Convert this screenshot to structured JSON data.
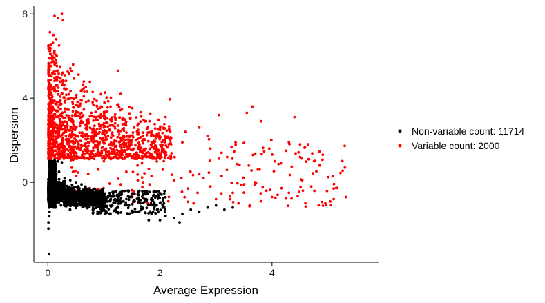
{
  "chart_data": {
    "type": "scatter",
    "title": "",
    "xlabel": "Average Expression",
    "ylabel": "Dispersion",
    "xlim": [
      -0.25,
      5.9
    ],
    "ylim": [
      -3.8,
      8.4
    ],
    "xticks": [
      0,
      2,
      4
    ],
    "yticks": [
      0,
      4,
      8
    ],
    "grid": false,
    "legend_position": "right",
    "series": [
      {
        "name": "Non-variable count: 11714",
        "color": "#000000",
        "count": 11714,
        "points": [
          [
            0.02,
            -3.4
          ],
          [
            0.01,
            -2.2
          ],
          [
            0.01,
            -1.9
          ],
          [
            0.02,
            -1.6
          ],
          [
            0.03,
            -1.4
          ],
          [
            0.02,
            -1.2
          ],
          [
            0.04,
            -1.0
          ],
          [
            0.02,
            0.9
          ],
          [
            0.05,
            1.0
          ],
          [
            0.08,
            1.0
          ],
          [
            0.12,
            1.05
          ],
          [
            0.18,
            1.0
          ],
          [
            0.25,
            0.95
          ],
          [
            0.05,
            0.5
          ],
          [
            0.1,
            0.6
          ],
          [
            0.15,
            0.4
          ],
          [
            0.2,
            0.5
          ],
          [
            0.3,
            0.2
          ],
          [
            0.4,
            0.1
          ],
          [
            0.5,
            0.0
          ],
          [
            0.6,
            -0.1
          ],
          [
            0.05,
            -0.4
          ],
          [
            0.1,
            -0.6
          ],
          [
            0.2,
            -0.7
          ],
          [
            0.3,
            -0.8
          ],
          [
            0.4,
            -0.7
          ],
          [
            0.5,
            -0.8
          ],
          [
            0.6,
            -0.9
          ],
          [
            0.7,
            -0.8
          ],
          [
            0.8,
            -0.6
          ],
          [
            0.9,
            -0.5
          ],
          [
            1.0,
            -0.7
          ],
          [
            1.1,
            -0.9
          ],
          [
            1.2,
            -0.8
          ],
          [
            1.3,
            -0.6
          ],
          [
            1.4,
            -0.8
          ],
          [
            1.5,
            -0.7
          ],
          [
            0.85,
            -1.1
          ],
          [
            0.95,
            -1.0
          ],
          [
            1.05,
            -1.2
          ],
          [
            1.15,
            -1.1
          ],
          [
            1.25,
            -1.2
          ],
          [
            1.35,
            -0.9
          ],
          [
            1.45,
            -1.1
          ],
          [
            1.55,
            -0.9
          ],
          [
            1.65,
            -1.0
          ],
          [
            1.75,
            -0.8
          ],
          [
            1.85,
            -1.5
          ],
          [
            1.95,
            -1.3
          ],
          [
            2.05,
            -1.2
          ],
          [
            2.1,
            -1.6
          ],
          [
            2.25,
            -1.7
          ],
          [
            2.4,
            -1.5
          ],
          [
            2.55,
            -1.3
          ],
          [
            2.7,
            -1.4
          ],
          [
            2.85,
            -1.2
          ],
          [
            3.0,
            -1.1
          ],
          [
            3.15,
            -1.3
          ],
          [
            3.3,
            -1.2
          ],
          [
            2.0,
            -1.8
          ],
          [
            1.8,
            -1.8
          ],
          [
            2.35,
            -1.9
          ]
        ]
      },
      {
        "name": "Variable count: 2000",
        "color": "#ff0000",
        "count": 2000,
        "points": [
          [
            0.12,
            7.9
          ],
          [
            0.18,
            7.8
          ],
          [
            0.25,
            8.0
          ],
          [
            0.27,
            7.7
          ],
          [
            0.1,
            7.0
          ],
          [
            0.15,
            6.8
          ],
          [
            0.2,
            6.5
          ],
          [
            0.08,
            6.0
          ],
          [
            0.14,
            5.8
          ],
          [
            0.22,
            5.5
          ],
          [
            0.18,
            5.0
          ],
          [
            0.28,
            4.8
          ],
          [
            0.32,
            4.4
          ],
          [
            0.06,
            4.6
          ],
          [
            1.25,
            5.3
          ],
          [
            1.3,
            4.2
          ],
          [
            0.65,
            4.3
          ],
          [
            0.42,
            4.0
          ],
          [
            0.55,
            3.6
          ],
          [
            0.8,
            3.8
          ],
          [
            0.95,
            3.6
          ],
          [
            0.72,
            3.0
          ],
          [
            0.6,
            3.3
          ],
          [
            1.0,
            2.8
          ],
          [
            1.1,
            2.5
          ],
          [
            1.2,
            2.8
          ],
          [
            1.35,
            2.2
          ],
          [
            1.5,
            2.0
          ],
          [
            1.6,
            2.7
          ],
          [
            1.75,
            2.9
          ],
          [
            1.95,
            1.6
          ],
          [
            2.1,
            3.1
          ],
          [
            2.18,
            3.95
          ],
          [
            2.4,
            1.9
          ],
          [
            2.45,
            2.4
          ],
          [
            2.7,
            2.6
          ],
          [
            2.85,
            2.2
          ],
          [
            3.05,
            3.2
          ],
          [
            3.2,
            1.2
          ],
          [
            3.35,
            1.9
          ],
          [
            3.55,
            3.3
          ],
          [
            3.65,
            3.6
          ],
          [
            3.8,
            2.9
          ],
          [
            3.95,
            1.6
          ],
          [
            4.05,
            1.0
          ],
          [
            4.25,
            1.5
          ],
          [
            4.4,
            3.1
          ],
          [
            4.5,
            1.2
          ],
          [
            4.65,
            1.1
          ],
          [
            4.75,
            1.0
          ],
          [
            4.85,
            0.8
          ],
          [
            4.95,
            -1.0
          ],
          [
            5.1,
            -0.8
          ],
          [
            5.3,
            0.7
          ],
          [
            5.32,
            -0.7
          ],
          [
            1.0,
            1.0
          ],
          [
            0.9,
            0.6
          ],
          [
            1.4,
            0.5
          ],
          [
            1.6,
            0.8
          ],
          [
            1.85,
            0.3
          ],
          [
            2.05,
            0.6
          ],
          [
            2.25,
            0.1
          ],
          [
            2.5,
            -0.3
          ],
          [
            2.7,
            0.4
          ],
          [
            2.9,
            -0.2
          ],
          [
            3.1,
            0.3
          ],
          [
            3.3,
            -0.5
          ],
          [
            3.5,
            -0.1
          ],
          [
            3.7,
            0.0
          ],
          [
            3.9,
            -0.4
          ],
          [
            4.1,
            -0.6
          ],
          [
            4.3,
            -0.5
          ],
          [
            4.55,
            -0.4
          ],
          [
            4.7,
            -0.2
          ],
          [
            2.6,
            -1.0
          ],
          [
            3.0,
            -0.8
          ],
          [
            3.4,
            -1.0
          ],
          [
            3.6,
            -1.1
          ],
          [
            3.8,
            -0.9
          ],
          [
            4.0,
            -0.7
          ],
          [
            3.25,
            -0.8
          ],
          [
            2.15,
            -0.9
          ],
          [
            1.7,
            0.0
          ],
          [
            1.3,
            -0.1
          ],
          [
            0.7,
            1.6
          ],
          [
            0.5,
            2.0
          ],
          [
            0.35,
            2.5
          ],
          [
            0.4,
            1.4
          ],
          [
            0.55,
            1.2
          ],
          [
            0.3,
            1.7
          ],
          [
            0.22,
            3.2
          ],
          [
            0.1,
            3.0
          ],
          [
            0.06,
            2.0
          ],
          [
            0.05,
            1.3
          ],
          [
            0.15,
            1.5
          ],
          [
            4.5,
            1.8
          ],
          [
            4.3,
            1.9
          ],
          [
            3.1,
            1.4
          ],
          [
            2.9,
            1.6
          ],
          [
            2.2,
            2.1
          ],
          [
            1.9,
            2.2
          ]
        ]
      }
    ]
  }
}
